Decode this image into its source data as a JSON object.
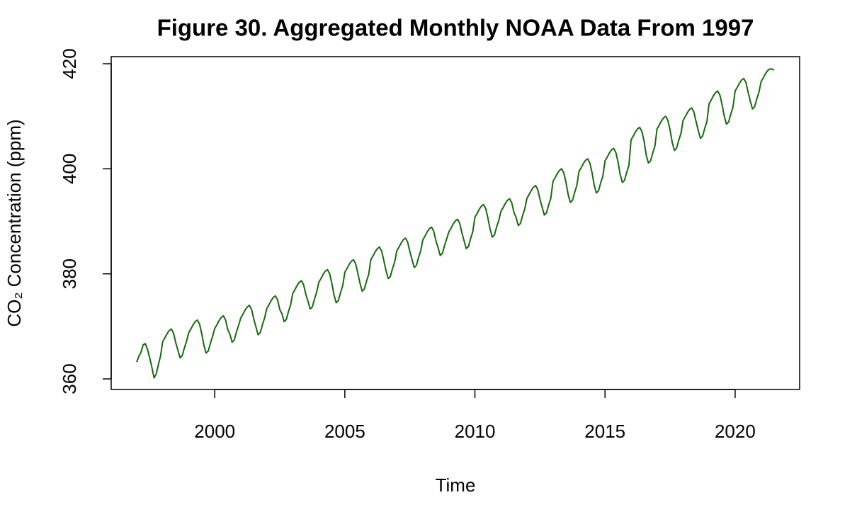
{
  "chart_data": {
    "type": "line",
    "title": "Figure 30. Aggregated Monthly NOAA Data From 1997",
    "x_label": "Time",
    "y_label": "CO₂ Concentration (ppm)",
    "xlim": [
      1996.02,
      2022.48
    ],
    "ylim": [
      357.98,
      421.35
    ],
    "xticks": [
      2000,
      2005,
      2010,
      2015,
      2020
    ],
    "yticks": [
      360,
      380,
      400,
      420
    ],
    "grid": false,
    "x": [
      1997,
      1997.083,
      1997.167,
      1997.25,
      1997.333,
      1997.417,
      1997.5,
      1997.583,
      1997.667,
      1997.75,
      1997.833,
      1997.917,
      1998,
      1998.083,
      1998.167,
      1998.25,
      1998.333,
      1998.417,
      1998.5,
      1998.583,
      1998.667,
      1998.75,
      1998.833,
      1998.917,
      1999,
      1999.083,
      1999.167,
      1999.25,
      1999.333,
      1999.417,
      1999.5,
      1999.583,
      1999.667,
      1999.75,
      1999.833,
      1999.917,
      2000,
      2000.083,
      2000.167,
      2000.25,
      2000.333,
      2000.417,
      2000.5,
      2000.583,
      2000.667,
      2000.75,
      2000.833,
      2000.917,
      2001,
      2001.083,
      2001.167,
      2001.25,
      2001.333,
      2001.417,
      2001.5,
      2001.583,
      2001.667,
      2001.75,
      2001.833,
      2001.917,
      2002,
      2002.083,
      2002.167,
      2002.25,
      2002.333,
      2002.417,
      2002.5,
      2002.583,
      2002.667,
      2002.75,
      2002.833,
      2002.917,
      2003,
      2003.083,
      2003.167,
      2003.25,
      2003.333,
      2003.417,
      2003.5,
      2003.583,
      2003.667,
      2003.75,
      2003.833,
      2003.917,
      2004,
      2004.083,
      2004.167,
      2004.25,
      2004.333,
      2004.417,
      2004.5,
      2004.583,
      2004.667,
      2004.75,
      2004.833,
      2004.917,
      2005,
      2005.083,
      2005.167,
      2005.25,
      2005.333,
      2005.417,
      2005.5,
      2005.583,
      2005.667,
      2005.75,
      2005.833,
      2005.917,
      2006,
      2006.083,
      2006.167,
      2006.25,
      2006.333,
      2006.417,
      2006.5,
      2006.583,
      2006.667,
      2006.75,
      2006.833,
      2006.917,
      2007,
      2007.083,
      2007.167,
      2007.25,
      2007.333,
      2007.417,
      2007.5,
      2007.583,
      2007.667,
      2007.75,
      2007.833,
      2007.917,
      2008,
      2008.083,
      2008.167,
      2008.25,
      2008.333,
      2008.417,
      2008.5,
      2008.583,
      2008.667,
      2008.75,
      2008.833,
      2008.917,
      2009,
      2009.083,
      2009.167,
      2009.25,
      2009.333,
      2009.417,
      2009.5,
      2009.583,
      2009.667,
      2009.75,
      2009.833,
      2009.917,
      2010,
      2010.083,
      2010.167,
      2010.25,
      2010.333,
      2010.417,
      2010.5,
      2010.583,
      2010.667,
      2010.75,
      2010.833,
      2010.917,
      2011,
      2011.083,
      2011.167,
      2011.25,
      2011.333,
      2011.417,
      2011.5,
      2011.583,
      2011.667,
      2011.75,
      2011.833,
      2011.917,
      2012,
      2012.083,
      2012.167,
      2012.25,
      2012.333,
      2012.417,
      2012.5,
      2012.583,
      2012.667,
      2012.75,
      2012.833,
      2012.917,
      2013,
      2013.083,
      2013.167,
      2013.25,
      2013.333,
      2013.417,
      2013.5,
      2013.583,
      2013.667,
      2013.75,
      2013.833,
      2013.917,
      2014,
      2014.083,
      2014.167,
      2014.25,
      2014.333,
      2014.417,
      2014.5,
      2014.583,
      2014.667,
      2014.75,
      2014.833,
      2014.917,
      2015,
      2015.083,
      2015.167,
      2015.25,
      2015.333,
      2015.417,
      2015.5,
      2015.583,
      2015.667,
      2015.75,
      2015.833,
      2015.917,
      2016,
      2016.083,
      2016.167,
      2016.25,
      2016.333,
      2016.417,
      2016.5,
      2016.583,
      2016.667,
      2016.75,
      2016.833,
      2016.917,
      2017,
      2017.083,
      2017.167,
      2017.25,
      2017.333,
      2017.417,
      2017.5,
      2017.583,
      2017.667,
      2017.75,
      2017.833,
      2017.917,
      2018,
      2018.083,
      2018.167,
      2018.25,
      2018.333,
      2018.417,
      2018.5,
      2018.583,
      2018.667,
      2018.75,
      2018.833,
      2018.917,
      2019,
      2019.083,
      2019.167,
      2019.25,
      2019.333,
      2019.417,
      2019.5,
      2019.583,
      2019.667,
      2019.75,
      2019.833,
      2019.917,
      2020,
      2020.083,
      2020.167,
      2020.25,
      2020.333,
      2020.417,
      2020.5,
      2020.583,
      2020.667,
      2020.75,
      2020.833,
      2020.917,
      2021,
      2021.083,
      2021.167,
      2021.25,
      2021.333,
      2021.417,
      2021.5
    ],
    "series": [
      {
        "color": "#176a0e",
        "values": [
          363.2,
          364.3,
          365.1,
          366.5,
          366.7,
          365.6,
          364.0,
          362.2,
          360.2,
          360.9,
          362.7,
          364.4,
          367.1,
          367.8,
          368.6,
          369.2,
          369.5,
          368.7,
          366.9,
          365.5,
          364.0,
          364.4,
          365.9,
          367.2,
          368.8,
          369.5,
          370.3,
          370.9,
          371.2,
          370.4,
          368.6,
          366.4,
          364.9,
          365.3,
          366.8,
          368.1,
          369.6,
          370.3,
          371.1,
          371.7,
          372.0,
          371.2,
          369.4,
          368.5,
          367.0,
          367.4,
          368.9,
          370.2,
          371.6,
          372.3,
          373.1,
          373.7,
          374.0,
          373.2,
          371.4,
          369.9,
          368.4,
          368.8,
          370.3,
          371.6,
          373.4,
          374.1,
          374.9,
          375.5,
          375.8,
          375.0,
          373.2,
          372.4,
          370.9,
          371.3,
          372.8,
          374.1,
          376.3,
          377.0,
          377.8,
          378.4,
          378.7,
          377.9,
          376.1,
          374.8,
          373.3,
          373.7,
          375.2,
          376.5,
          378.4,
          379.1,
          379.9,
          380.5,
          380.8,
          380.0,
          378.2,
          376.0,
          374.5,
          374.9,
          376.4,
          377.7,
          380.3,
          381.0,
          381.8,
          382.4,
          382.7,
          381.9,
          380.1,
          378.2,
          376.7,
          377.1,
          378.6,
          379.9,
          382.7,
          383.4,
          384.2,
          384.8,
          385.1,
          384.3,
          382.5,
          380.6,
          379.1,
          379.5,
          381.0,
          382.3,
          384.4,
          385.1,
          385.9,
          386.5,
          386.8,
          386.0,
          384.2,
          382.7,
          381.2,
          381.6,
          383.1,
          384.4,
          386.5,
          387.2,
          388.0,
          388.6,
          388.9,
          388.1,
          386.3,
          385.0,
          383.5,
          383.9,
          385.4,
          386.7,
          388.0,
          388.7,
          389.5,
          390.1,
          390.4,
          389.6,
          387.8,
          386.3,
          384.8,
          385.2,
          386.7,
          388.0,
          390.8,
          391.5,
          392.3,
          392.9,
          393.2,
          392.4,
          390.6,
          388.5,
          387.0,
          387.4,
          388.9,
          390.2,
          391.9,
          392.6,
          393.4,
          394.0,
          394.3,
          393.5,
          391.7,
          390.7,
          389.2,
          389.6,
          391.1,
          392.4,
          394.4,
          395.1,
          395.9,
          396.5,
          396.8,
          396.0,
          394.2,
          392.7,
          391.2,
          391.6,
          393.1,
          394.4,
          397.6,
          398.3,
          399.1,
          399.7,
          400.0,
          399.2,
          397.4,
          395.1,
          393.6,
          394.0,
          395.5,
          396.8,
          399.5,
          400.2,
          401.0,
          401.6,
          401.9,
          401.1,
          399.3,
          396.9,
          395.4,
          395.8,
          397.3,
          398.6,
          401.5,
          402.2,
          403.0,
          403.6,
          403.9,
          403.1,
          401.3,
          398.9,
          397.4,
          397.8,
          399.3,
          400.6,
          405.5,
          406.2,
          407.0,
          407.6,
          407.9,
          407.1,
          405.3,
          402.6,
          401.1,
          401.5,
          403.0,
          404.3,
          407.6,
          408.3,
          409.1,
          409.7,
          410.0,
          409.2,
          407.4,
          405.0,
          403.5,
          403.9,
          405.4,
          406.7,
          409.2,
          409.9,
          410.7,
          411.3,
          411.6,
          410.8,
          409.0,
          407.3,
          405.8,
          406.2,
          407.7,
          409.0,
          412.4,
          413.1,
          413.9,
          414.5,
          414.8,
          414.0,
          412.2,
          410.0,
          408.5,
          408.9,
          410.4,
          411.7,
          414.8,
          415.5,
          416.3,
          416.9,
          417.2,
          416.4,
          414.6,
          412.9,
          411.4,
          411.8,
          413.3,
          414.6,
          416.6,
          417.3,
          418.1,
          418.7,
          419.0,
          419.0,
          418.8
        ]
      }
    ]
  }
}
